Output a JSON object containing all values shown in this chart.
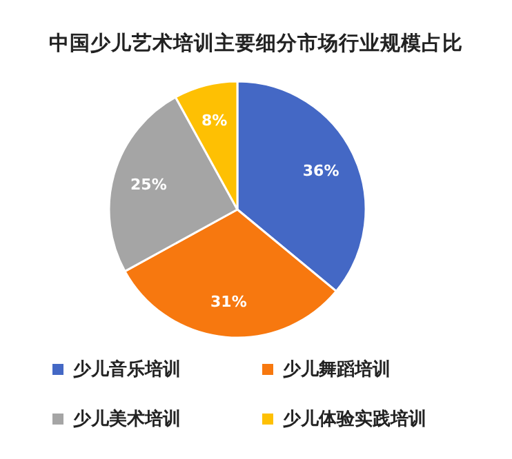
{
  "chart_data": {
    "type": "pie",
    "title": "中国少儿艺术培训主要细分市场行业规模占比",
    "categories": [
      "少儿音乐培训",
      "少儿舞蹈培训",
      "少儿美术培训",
      "少儿体验实践培训"
    ],
    "values": [
      36,
      31,
      25,
      8
    ],
    "colors": [
      "#4468c5",
      "#f7780f",
      "#a5a5a5",
      "#fec003"
    ],
    "value_labels": [
      "36%",
      "31%",
      "25%",
      "8%"
    ],
    "legend": "bottom"
  }
}
